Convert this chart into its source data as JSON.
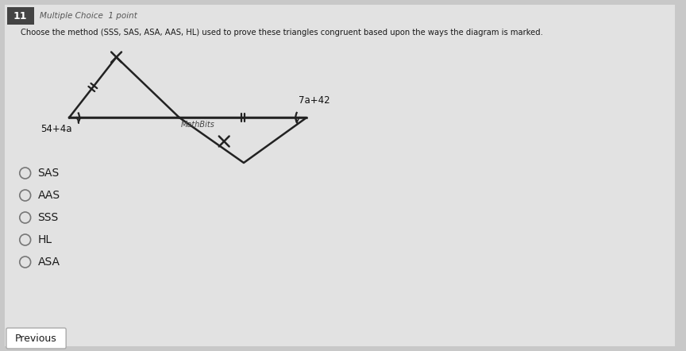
{
  "question_number": "11",
  "question_type": "Multiple Choice  1 point",
  "question_text": "Choose the method (SSS, SAS, ASA, AAS, HL) used to prove these triangles congruent based upon the ways the diagram is marked.",
  "options": [
    "SAS",
    "AAS",
    "SSS",
    "HL",
    "ASA"
  ],
  "bg_color": "#c8c8c8",
  "panel_color": "#e2e2e2",
  "text_color": "#1a1a1a",
  "label_left": "54+4a",
  "label_right": "7a+42",
  "label_mid": "MathBits",
  "previous_btn": "Previous",
  "badge_color": "#444444",
  "tri_color": "#222222",
  "mark_color": "#222222"
}
